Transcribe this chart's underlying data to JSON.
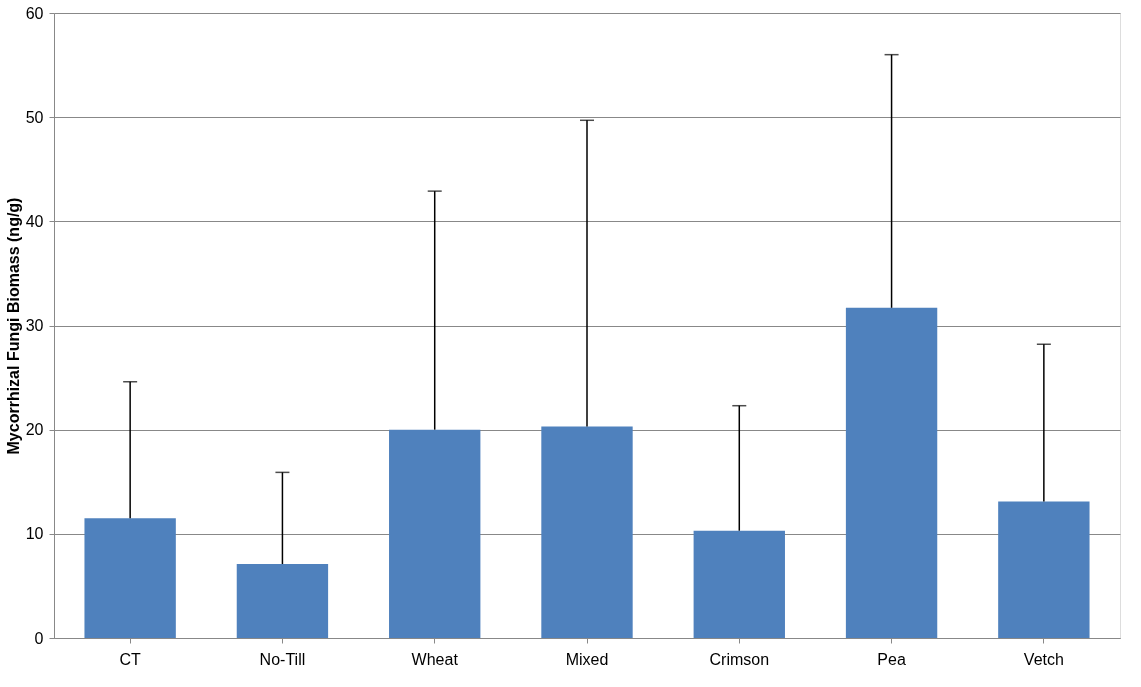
{
  "chart_data": {
    "type": "bar",
    "ylabel": "Mycorrhizal Fungi Biomass (ng/g)",
    "categories": [
      "CT",
      "No-Till",
      "Wheat",
      "Mixed",
      "Crimson",
      "Pea",
      "Vetch"
    ],
    "values": [
      11.5,
      7.1,
      20.0,
      20.3,
      10.3,
      31.7,
      13.1
    ],
    "errors": [
      [
        11.5,
        24.6
      ],
      [
        7.1,
        15.9
      ],
      [
        20.0,
        42.9
      ],
      [
        20.3,
        49.7
      ],
      [
        10.3,
        22.3
      ],
      [
        31.7,
        56.0
      ],
      [
        13.1,
        28.2
      ]
    ],
    "color": "#4f81bd",
    "ylim": [
      0,
      60
    ],
    "yticks": [
      0,
      10,
      20,
      30,
      40,
      50,
      60
    ],
    "grid": "y"
  }
}
